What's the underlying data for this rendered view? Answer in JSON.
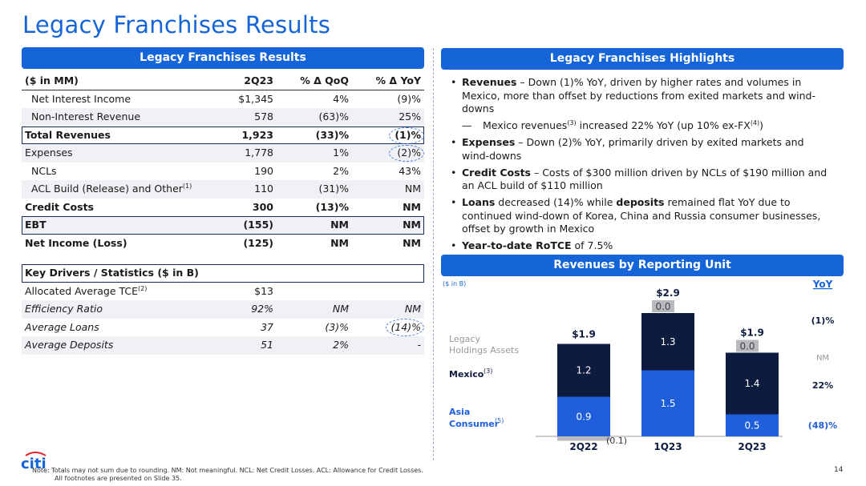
{
  "page_title": "Legacy Franchises Results",
  "left_banner": "Legacy Franchises Results",
  "right_banner": "Legacy Franchises Highlights",
  "chart_banner": "Revenues by Reporting Unit",
  "table": {
    "header": [
      "($ in MM)",
      "2Q23",
      "% Δ QoQ",
      "% Δ YoY"
    ],
    "rows": [
      {
        "label": "Net Interest Income",
        "v": [
          "$1,345",
          "4%",
          "(9)%"
        ]
      },
      {
        "label": "Non-Interest Revenue",
        "v": [
          "578",
          "(63)%",
          "25%"
        ]
      },
      {
        "label": "Total Revenues",
        "v": [
          "1,923",
          "(33)%",
          "(1)%"
        ]
      },
      {
        "label": "Expenses",
        "v": [
          "1,778",
          "1%",
          "(2)%"
        ]
      },
      {
        "label": "NCLs",
        "v": [
          "190",
          "2%",
          "43%"
        ]
      },
      {
        "label": "ACL Build (Release) and Other",
        "sup": "(1)",
        "v": [
          "110",
          "(31)%",
          "NM"
        ]
      },
      {
        "label": "Credit Costs",
        "v": [
          "300",
          "(13)%",
          "NM"
        ]
      },
      {
        "label": "EBT",
        "v": [
          "(155)",
          "NM",
          "NM"
        ]
      },
      {
        "label": "Net Income (Loss)",
        "v": [
          "(125)",
          "NM",
          "NM"
        ]
      }
    ],
    "stats_header": "Key Drivers / Statistics ($ in B)",
    "stats": [
      {
        "label": "Allocated Average TCE",
        "sup": "(2)",
        "v": [
          "$13",
          "",
          ""
        ]
      },
      {
        "label": "Efficiency Ratio",
        "v": [
          "92%",
          "NM",
          "NM"
        ]
      },
      {
        "label": "Average Loans",
        "v": [
          "37",
          "(3)%",
          "(14)%"
        ]
      },
      {
        "label": "Average Deposits",
        "v": [
          "51",
          "2%",
          "-"
        ]
      }
    ]
  },
  "highlights": {
    "b1_bold": "Revenues",
    "b1_text": " – Down (1)% YoY, driven by higher rates and volumes in Mexico, more than offset by reductions from exited markets and wind-downs",
    "b1_sub_pre": "Mexico revenues",
    "b1_sub_sup": "(3)",
    "b1_sub_mid": " increased 22% YoY (up 10% ex-FX",
    "b1_sub_sup2": "(4)",
    "b1_sub_end": ")",
    "b2_bold": "Expenses",
    "b2_text": " – Down (2)% YoY, primarily driven by exited markets and wind-downs",
    "b3_bold": "Credit Costs",
    "b3_text": " – Costs of $300 million driven by NCLs of $190 million and an ACL build of $110 million",
    "b4_bold1": "Loans",
    "b4_mid": " decreased (14)% while ",
    "b4_bold2": "deposits",
    "b4_text": " remained flat YoY due to continued wind-down of Korea, China and Russia consumer businesses, offset by growth in Mexico",
    "b5_bold": "Year-to-date RoTCE",
    "b5_text": " of 7.5%"
  },
  "chart_data": {
    "type": "bar",
    "units_label": "($ in B)",
    "categories": [
      "2Q22",
      "1Q23",
      "2Q23"
    ],
    "totals": [
      "$1.9",
      "$2.9",
      "$1.9"
    ],
    "series": [
      {
        "name": "Asia Consumer",
        "sup": "(5)",
        "values": [
          0.9,
          1.5,
          0.5
        ],
        "labels": [
          "0.9",
          "1.5",
          "0.5"
        ],
        "color": "#1f5fdc"
      },
      {
        "name": "Mexico",
        "sup": "(3)",
        "values": [
          1.2,
          1.3,
          1.4
        ],
        "labels": [
          "1.2",
          "1.3",
          "1.4"
        ],
        "color": "#0d1b3e"
      },
      {
        "name": "Legacy Holdings Assets",
        "values": [
          -0.1,
          0.0,
          0.0
        ],
        "labels": [
          "(0.1)",
          "0.0",
          "0.0"
        ],
        "color": "#b8babe"
      }
    ],
    "yoy_header": "YoY",
    "yoy_total": "(1)%",
    "yoy": [
      "(48)%",
      "22%",
      "NM"
    ]
  },
  "note": "Note:  Totals may not sum due to rounding.  NM: Not meaningful. NCL: Net Credit Losses. ACL: Allowance for Credit Losses.",
  "note2": "All footnotes are presented on Slide 35.",
  "page_number": "14",
  "logo_text": "citi",
  "colors": {
    "accent": "#1565d8",
    "navy": "#0d1b3e",
    "blue": "#1f5fdc"
  }
}
